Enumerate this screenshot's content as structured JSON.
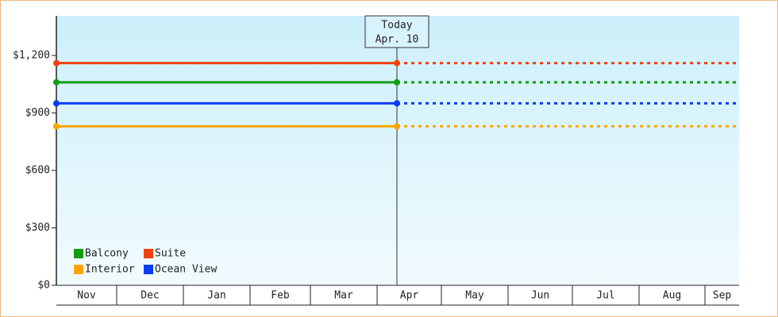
{
  "chart_data": {
    "type": "line",
    "categories": [
      "Nov",
      "Dec",
      "Jan",
      "Feb",
      "Mar",
      "Apr",
      "May",
      "Jun",
      "Jul",
      "Aug",
      "Sep"
    ],
    "series": [
      {
        "name": "Balcony",
        "color": "#129c12",
        "value": 1060
      },
      {
        "name": "Suite",
        "color": "#f5400e",
        "value": 1160
      },
      {
        "name": "Interior",
        "color": "#ffa500",
        "value": 830
      },
      {
        "name": "Ocean View",
        "color": "#0a3cf5",
        "value": 950
      }
    ],
    "annotation": {
      "title": "Today",
      "date": "Apr. 10"
    },
    "ylim": [
      0,
      1407
    ],
    "yticks": [
      {
        "value": 0,
        "label": "$0"
      },
      {
        "value": 300,
        "label": "$300"
      },
      {
        "value": 600,
        "label": "$600"
      },
      {
        "value": 900,
        "label": "$900"
      },
      {
        "value": 1200,
        "label": "$1,200"
      }
    ],
    "legend": "lower left"
  }
}
